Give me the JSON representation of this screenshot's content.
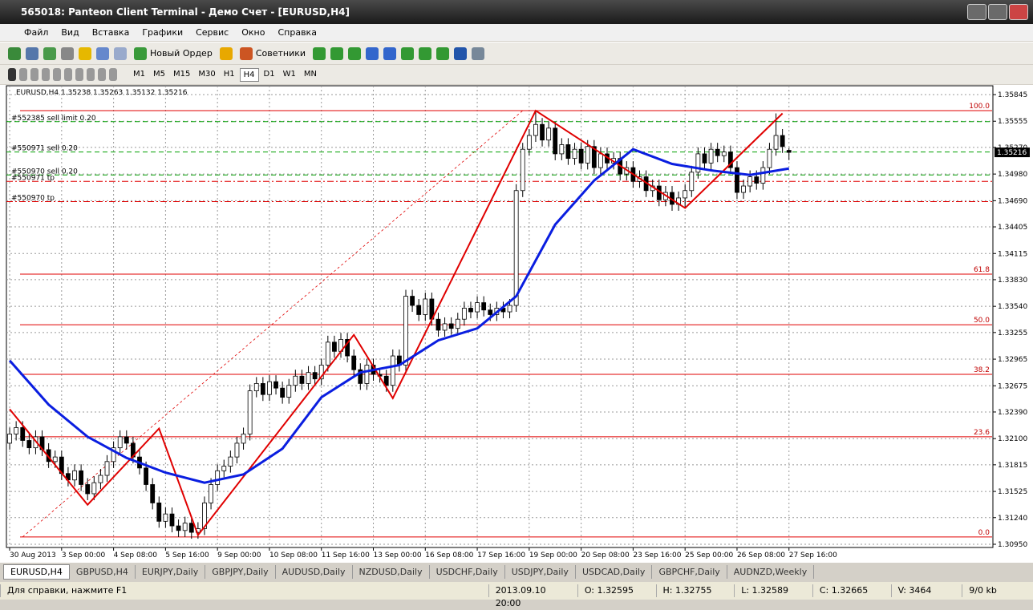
{
  "window": {
    "title": "565018: Panteon Client Terminal - Демо Счет - [EURUSD,H4]"
  },
  "menu": [
    "Файл",
    "Вид",
    "Вставка",
    "Графики",
    "Сервис",
    "Окно",
    "Справка"
  ],
  "toolbar": {
    "new_order": "Новый Ордер",
    "experts": "Советники"
  },
  "timeframes": [
    "M1",
    "M5",
    "M15",
    "M30",
    "H1",
    "H4",
    "D1",
    "W1",
    "MN"
  ],
  "active_timeframe": 5,
  "chart_data": {
    "type": "candlestick",
    "title": "EURUSD,H4  1.35238 1.35263 1.35132 1.35216",
    "ylim": [
      1.30915,
      1.35941
    ],
    "xlim": [
      -0.5,
      151.4
    ],
    "yticks": [
      1.35845,
      1.35555,
      {
        "value": 1.3527,
        "label": "1.35270"
      },
      {
        "value": 1.3498,
        "label": "1.34980"
      },
      {
        "value": 1.3469,
        "label": "1.34690"
      },
      1.34405,
      1.34115,
      {
        "value": 1.3383,
        "label": "1.33830"
      },
      {
        "value": 1.3354,
        "label": "1.33540"
      },
      1.33255,
      1.32965,
      1.32675,
      {
        "value": 1.3239,
        "label": "1.32390"
      },
      {
        "value": 1.321,
        "label": "1.32100"
      },
      1.31815,
      1.31525,
      {
        "value": 1.3124,
        "label": "1.31240"
      },
      {
        "value": 1.3095,
        "label": "1.30950"
      }
    ],
    "xticks": [
      {
        "value": 0,
        "label": "30 Aug 2013"
      },
      {
        "value": 8,
        "label": "3 Sep 00:00"
      },
      {
        "value": 16,
        "label": "4 Sep 08:00"
      },
      {
        "value": 24,
        "label": "5 Sep 16:00"
      },
      {
        "value": 32,
        "label": "9 Sep 00:00"
      },
      {
        "value": 40,
        "label": "10 Sep 08:00"
      },
      {
        "value": 48,
        "label": "11 Sep 16:00"
      },
      {
        "value": 56,
        "label": "13 Sep 00:00"
      },
      {
        "value": 64,
        "label": "16 Sep 08:00"
      },
      {
        "value": 72,
        "label": "17 Sep 16:00"
      },
      {
        "value": 80,
        "label": "19 Sep 00:00"
      },
      {
        "value": 88,
        "label": "20 Sep 08:00"
      },
      {
        "value": 96,
        "label": "23 Sep 16:00"
      },
      {
        "value": 104,
        "label": "25 Sep 00:00"
      },
      {
        "value": 112,
        "label": "26 Sep 08:00"
      },
      {
        "value": 120,
        "label": "27 Sep 16:00"
      }
    ],
    "grid": true,
    "candles": [
      [
        1.3205,
        1.3222,
        1.3198,
        1.3215
      ],
      [
        1.3215,
        1.3229,
        1.3208,
        1.3222
      ],
      [
        1.3222,
        1.3229,
        1.3201,
        1.3208
      ],
      [
        1.3208,
        1.3215,
        1.3193,
        1.32
      ],
      [
        1.32,
        1.3219,
        1.3193,
        1.3212
      ],
      [
        1.3212,
        1.3219,
        1.3191,
        1.3198
      ],
      [
        1.3198,
        1.3205,
        1.3178,
        1.3185
      ],
      [
        1.3185,
        1.3197,
        1.3178,
        1.319
      ],
      [
        1.319,
        1.3197,
        1.3165,
        1.3172
      ],
      [
        1.3172,
        1.3179,
        1.3158,
        1.3165
      ],
      [
        1.3165,
        1.3182,
        1.3158,
        1.3175
      ],
      [
        1.3175,
        1.3182,
        1.3153,
        1.316
      ],
      [
        1.316,
        1.3167,
        1.3143,
        1.315
      ],
      [
        1.315,
        1.3169,
        1.3143,
        1.3162
      ],
      [
        1.3162,
        1.3177,
        1.3155,
        1.317
      ],
      [
        1.317,
        1.3192,
        1.3163,
        1.3185
      ],
      [
        1.3185,
        1.3207,
        1.3178,
        1.32
      ],
      [
        1.32,
        1.3219,
        1.3193,
        1.3212
      ],
      [
        1.3212,
        1.3219,
        1.3198,
        1.3205
      ],
      [
        1.3205,
        1.3212,
        1.3183,
        1.319
      ],
      [
        1.319,
        1.3197,
        1.3171,
        1.3178
      ],
      [
        1.3178,
        1.3185,
        1.3153,
        1.316
      ],
      [
        1.316,
        1.3167,
        1.3133,
        1.314
      ],
      [
        1.314,
        1.3147,
        1.3113,
        1.312
      ],
      [
        1.312,
        1.3135,
        1.3113,
        1.3128
      ],
      [
        1.3128,
        1.3135,
        1.3108,
        1.3115
      ],
      [
        1.3115,
        1.3122,
        1.3103,
        1.311
      ],
      [
        1.311,
        1.3125,
        1.3103,
        1.3118
      ],
      [
        1.3118,
        1.3125,
        1.3101,
        1.3108
      ],
      [
        1.3108,
        1.3119,
        1.3101,
        1.3112
      ],
      [
        1.3112,
        1.3147,
        1.3105,
        1.314
      ],
      [
        1.314,
        1.3167,
        1.3133,
        1.316
      ],
      [
        1.316,
        1.3182,
        1.3153,
        1.3175
      ],
      [
        1.3175,
        1.3187,
        1.3168,
        1.318
      ],
      [
        1.318,
        1.3197,
        1.3173,
        1.319
      ],
      [
        1.319,
        1.3212,
        1.3183,
        1.3205
      ],
      [
        1.3205,
        1.3222,
        1.3198,
        1.3215
      ],
      [
        1.3215,
        1.3269,
        1.3208,
        1.3262
      ],
      [
        1.3262,
        1.3277,
        1.3255,
        1.327
      ],
      [
        1.327,
        1.3277,
        1.3251,
        1.3258
      ],
      [
        1.3258,
        1.3279,
        1.3251,
        1.3272
      ],
      [
        1.3272,
        1.3279,
        1.3258,
        1.3265
      ],
      [
        1.3265,
        1.3272,
        1.3248,
        1.3255
      ],
      [
        1.3255,
        1.3275,
        1.3248,
        1.3268
      ],
      [
        1.3268,
        1.3285,
        1.3261,
        1.3278
      ],
      [
        1.3278,
        1.3285,
        1.3263,
        1.327
      ],
      [
        1.327,
        1.3289,
        1.3263,
        1.3282
      ],
      [
        1.3282,
        1.3289,
        1.3268,
        1.3275
      ],
      [
        1.3275,
        1.3297,
        1.3268,
        1.329
      ],
      [
        1.329,
        1.3322,
        1.3283,
        1.3315
      ],
      [
        1.3315,
        1.3322,
        1.3298,
        1.3305
      ],
      [
        1.3305,
        1.3325,
        1.3298,
        1.3318
      ],
      [
        1.3318,
        1.3325,
        1.3293,
        1.33
      ],
      [
        1.33,
        1.3307,
        1.3278,
        1.3285
      ],
      [
        1.3285,
        1.3292,
        1.3263,
        1.327
      ],
      [
        1.327,
        1.3297,
        1.3263,
        1.329
      ],
      [
        1.329,
        1.3297,
        1.3273,
        1.328
      ],
      [
        1.328,
        1.3287,
        1.3271,
        1.3278
      ],
      [
        1.3278,
        1.3285,
        1.3261,
        1.3268
      ],
      [
        1.3268,
        1.3307,
        1.3261,
        1.33
      ],
      [
        1.33,
        1.3307,
        1.3283,
        1.329
      ],
      [
        1.329,
        1.3372,
        1.3283,
        1.3365
      ],
      [
        1.3365,
        1.3372,
        1.3348,
        1.3355
      ],
      [
        1.3355,
        1.3362,
        1.3338,
        1.3345
      ],
      [
        1.3345,
        1.3369,
        1.3338,
        1.3362
      ],
      [
        1.3362,
        1.3369,
        1.3333,
        1.334
      ],
      [
        1.334,
        1.3347,
        1.3321,
        1.3328
      ],
      [
        1.3328,
        1.3342,
        1.3321,
        1.3335
      ],
      [
        1.3335,
        1.3342,
        1.3323,
        1.333
      ],
      [
        1.333,
        1.3347,
        1.3323,
        1.334
      ],
      [
        1.334,
        1.3359,
        1.3333,
        1.3352
      ],
      [
        1.3352,
        1.3359,
        1.3341,
        1.3348
      ],
      [
        1.3348,
        1.3365,
        1.3341,
        1.3358
      ],
      [
        1.3358,
        1.3365,
        1.3343,
        1.335
      ],
      [
        1.335,
        1.3357,
        1.3338,
        1.3345
      ],
      [
        1.3345,
        1.3359,
        1.3338,
        1.3352
      ],
      [
        1.3352,
        1.3359,
        1.3341,
        1.3348
      ],
      [
        1.3348,
        1.3362,
        1.3341,
        1.3355
      ],
      [
        1.3355,
        1.3487,
        1.3348,
        1.348
      ],
      [
        1.348,
        1.3532,
        1.3473,
        1.3525
      ],
      [
        1.3525,
        1.3547,
        1.3518,
        1.354
      ],
      [
        1.354,
        1.3567,
        1.3533,
        1.3552
      ],
      [
        1.3552,
        1.3559,
        1.3528,
        1.3535
      ],
      [
        1.3535,
        1.3555,
        1.3528,
        1.3548
      ],
      [
        1.3548,
        1.3555,
        1.3513,
        1.352
      ],
      [
        1.352,
        1.3537,
        1.3513,
        1.353
      ],
      [
        1.353,
        1.3537,
        1.3508,
        1.3515
      ],
      [
        1.3515,
        1.3532,
        1.3508,
        1.3525
      ],
      [
        1.3525,
        1.3532,
        1.3503,
        1.351
      ],
      [
        1.351,
        1.3535,
        1.3503,
        1.3528
      ],
      [
        1.3528,
        1.3535,
        1.3498,
        1.3505
      ],
      [
        1.3505,
        1.3527,
        1.3498,
        1.352
      ],
      [
        1.352,
        1.3527,
        1.3503,
        1.351
      ],
      [
        1.351,
        1.3522,
        1.3503,
        1.3515
      ],
      [
        1.3515,
        1.3522,
        1.3491,
        1.3498
      ],
      [
        1.3498,
        1.3512,
        1.3491,
        1.3505
      ],
      [
        1.3505,
        1.3512,
        1.3483,
        1.349
      ],
      [
        1.349,
        1.3502,
        1.3483,
        1.3495
      ],
      [
        1.3495,
        1.3502,
        1.3473,
        1.348
      ],
      [
        1.348,
        1.3492,
        1.3473,
        1.3485
      ],
      [
        1.3485,
        1.3492,
        1.3463,
        1.347
      ],
      [
        1.347,
        1.3485,
        1.3463,
        1.3478
      ],
      [
        1.3478,
        1.3485,
        1.3458,
        1.3465
      ],
      [
        1.3465,
        1.3479,
        1.3458,
        1.3472
      ],
      [
        1.3472,
        1.3487,
        1.3461,
        1.348
      ],
      [
        1.348,
        1.3507,
        1.3473,
        1.35
      ],
      [
        1.35,
        1.3527,
        1.3493,
        1.352
      ],
      [
        1.352,
        1.3527,
        1.3503,
        1.351
      ],
      [
        1.351,
        1.3532,
        1.3503,
        1.3525
      ],
      [
        1.3525,
        1.3532,
        1.3511,
        1.3518
      ],
      [
        1.3518,
        1.3529,
        1.3511,
        1.3522
      ],
      [
        1.3522,
        1.3529,
        1.3498,
        1.3505
      ],
      [
        1.3505,
        1.3512,
        1.3471,
        1.3478
      ],
      [
        1.3478,
        1.3492,
        1.3471,
        1.3485
      ],
      [
        1.3485,
        1.3502,
        1.3478,
        1.3495
      ],
      [
        1.3495,
        1.3502,
        1.3481,
        1.3488
      ],
      [
        1.3488,
        1.3512,
        1.3481,
        1.3505
      ],
      [
        1.3505,
        1.3532,
        1.3498,
        1.3525
      ],
      [
        1.3525,
        1.3564,
        1.3518,
        1.354
      ],
      [
        1.354,
        1.3547,
        1.3521,
        1.3528
      ],
      [
        1.35238,
        1.35263,
        1.35132,
        1.35216
      ]
    ],
    "ma": {
      "color": "#0a1ee0",
      "x": [
        0,
        6,
        12,
        18,
        24,
        30,
        36,
        42,
        48,
        54,
        60,
        66,
        72,
        78,
        84,
        90,
        96,
        102,
        108,
        114,
        120
      ],
      "values": [
        1.3295,
        1.3247,
        1.3212,
        1.3189,
        1.3173,
        1.3162,
        1.3171,
        1.3199,
        1.3255,
        1.3282,
        1.329,
        1.3317,
        1.333,
        1.3365,
        1.3443,
        1.3491,
        1.3525,
        1.3509,
        1.3502,
        1.3497,
        1.3504
      ]
    },
    "zigzag": {
      "color": "#e00000",
      "x": [
        0,
        12,
        23,
        29,
        53,
        59,
        81,
        104,
        119
      ],
      "values": [
        1.3242,
        1.3138,
        1.3221,
        1.3105,
        1.3323,
        1.3254,
        1.3567,
        1.3461,
        1.3564
      ]
    },
    "fib_levels": [
      {
        "label": "100.0",
        "price": 1.3567
      },
      {
        "label": "61.8",
        "price": 1.3389
      },
      {
        "label": "50.0",
        "price": 1.3334
      },
      {
        "label": "38.2",
        "price": 1.328
      },
      {
        "label": "23.6",
        "price": 1.3212
      },
      {
        "label": "0.0",
        "price": 1.3103
      }
    ],
    "orders": [
      {
        "label": "#552385 sell limit 0.20",
        "price": 1.3555,
        "color": "#00a000"
      },
      {
        "label": "#550971 sell 0.20",
        "price": 1.3522,
        "color": "#00a000"
      },
      {
        "label": "#550970 sell 0.20",
        "price": 1.3497,
        "color": "#00a000"
      },
      {
        "label": "#550971 tp",
        "price": 1.349,
        "color": "#e00000"
      },
      {
        "label": "#550970 tp",
        "price": 1.3468,
        "color": "#e00000"
      }
    ],
    "bid": 1.35216
  },
  "tabs": [
    "EURUSD,H4",
    "GBPUSD,H4",
    "EURJPY,Daily",
    "GBPJPY,Daily",
    "AUDUSD,Daily",
    "NZDUSD,Daily",
    "USDCHF,Daily",
    "USDJPY,Daily",
    "USDCAD,Daily",
    "GBPCHF,Daily",
    "AUDNZD,Weekly"
  ],
  "status": {
    "help": "Для справки, нажмите F1",
    "time": "2013.09.10 20:00",
    "open": "O: 1.32595",
    "high": "H: 1.32755",
    "low": "L: 1.32589",
    "close": "C: 1.32665",
    "volume": "V: 3464",
    "traffic": "9/0 kb"
  }
}
